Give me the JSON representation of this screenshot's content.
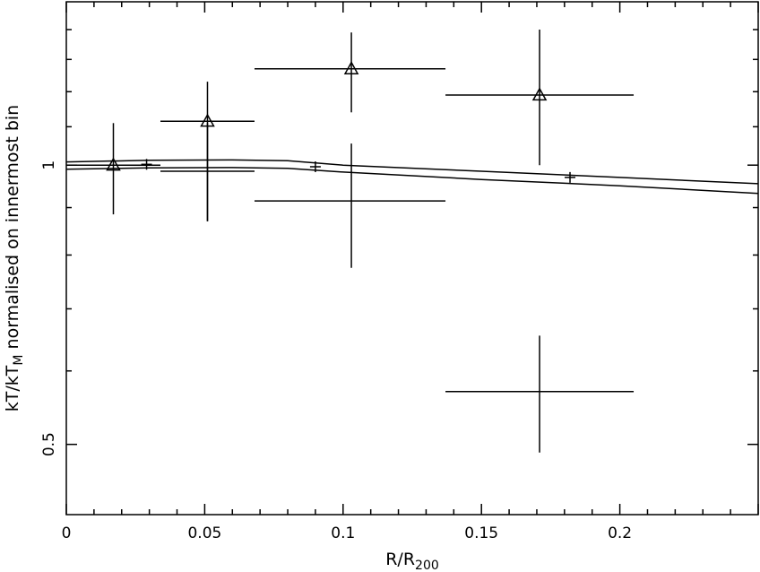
{
  "chart_data": {
    "type": "scatter",
    "xlabel_main": "R/R",
    "xlabel_sub": "200",
    "ylabel_main": "kT/kT",
    "ylabel_sub": "M",
    "ylabel_rest": " normalised on innermost bin",
    "xlim": [
      0,
      0.25
    ],
    "ylim": [
      0.42,
      1.5
    ],
    "y_scale": "log",
    "grid": false,
    "x_ticks": [
      {
        "value": 0,
        "label": "0"
      },
      {
        "value": 0.05,
        "label": "0.05"
      },
      {
        "value": 0.1,
        "label": "0.1"
      },
      {
        "value": 0.15,
        "label": "0.15"
      },
      {
        "value": 0.2,
        "label": "0.2"
      }
    ],
    "y_ticks": [
      {
        "value": 0.5,
        "label": "0.5"
      },
      {
        "value": 1,
        "label": "1"
      }
    ],
    "series": [
      {
        "marker": "triangle",
        "points": [
          {
            "x": 0.017,
            "xlo": 0.0,
            "xhi": 0.034,
            "y": 1.0,
            "ylo": 0.885,
            "yhi": 1.11
          },
          {
            "x": 0.051,
            "xlo": 0.034,
            "xhi": 0.068,
            "y": 1.115,
            "ylo": 0.87,
            "yhi": 1.23
          },
          {
            "x": 0.103,
            "xlo": 0.068,
            "xhi": 0.137,
            "y": 1.27,
            "ylo": 1.14,
            "yhi": 1.39
          },
          {
            "x": 0.171,
            "xlo": 0.137,
            "xhi": 0.205,
            "y": 1.19,
            "ylo": 1.0,
            "yhi": 1.4
          }
        ]
      },
      {
        "marker": "none",
        "points": [
          {
            "x": 0.051,
            "xlo": 0.034,
            "xhi": 0.068,
            "y": 0.985,
            "ylo": 0.87,
            "yhi": 1.11
          },
          {
            "x": 0.103,
            "xlo": 0.068,
            "xhi": 0.137,
            "y": 0.915,
            "ylo": 0.775,
            "yhi": 1.055
          },
          {
            "x": 0.171,
            "xlo": 0.137,
            "xhi": 0.205,
            "y": 0.57,
            "ylo": 0.49,
            "yhi": 0.655
          }
        ]
      }
    ],
    "model_band": {
      "upper": [
        [
          0,
          1.008
        ],
        [
          0.03,
          1.012
        ],
        [
          0.06,
          1.013
        ],
        [
          0.08,
          1.011
        ],
        [
          0.1,
          1.0
        ],
        [
          0.15,
          0.985
        ],
        [
          0.2,
          0.97
        ],
        [
          0.25,
          0.955
        ]
      ],
      "lower": [
        [
          0,
          0.99
        ],
        [
          0.03,
          0.993
        ],
        [
          0.06,
          0.994
        ],
        [
          0.08,
          0.992
        ],
        [
          0.1,
          0.983
        ],
        [
          0.15,
          0.965
        ],
        [
          0.2,
          0.95
        ],
        [
          0.25,
          0.932
        ]
      ]
    },
    "model_markers": [
      {
        "x": 0.029,
        "y": 1.002
      },
      {
        "x": 0.09,
        "y": 0.996
      },
      {
        "x": 0.182,
        "y": 0.97
      }
    ]
  }
}
